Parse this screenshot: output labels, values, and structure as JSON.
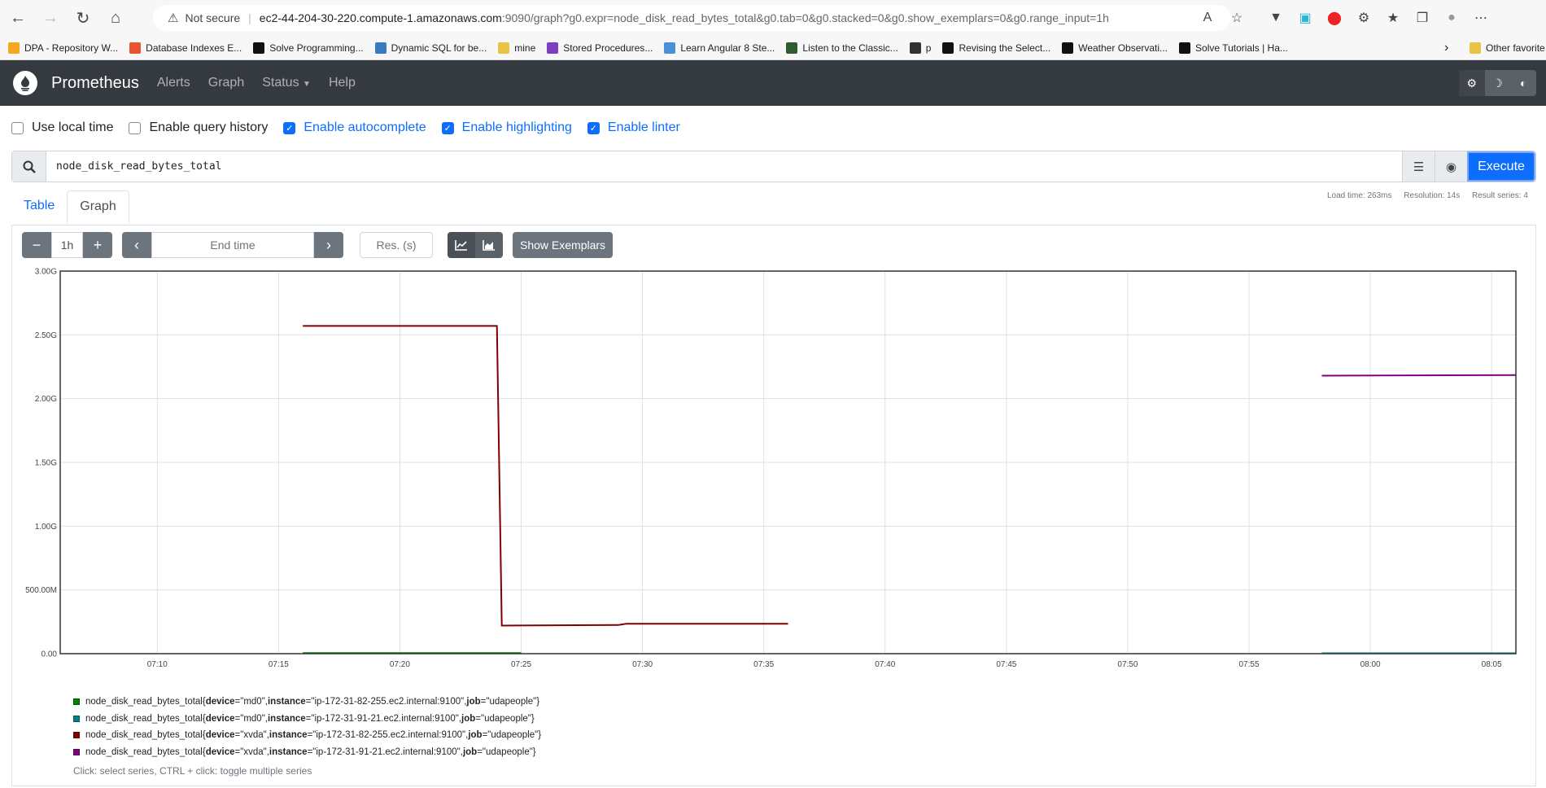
{
  "browser": {
    "not_secure": "Not secure",
    "url_host": "ec2-44-204-30-220.compute-1.amazonaws.com",
    "url_rest": ":9090/graph?g0.expr=node_disk_read_bytes_total&g0.tab=0&g0.stacked=0&g0.show_exemplars=0&g0.range_input=1h",
    "bookmarks": [
      {
        "label": "DPA - Repository W...",
        "icon": "dpa-icon",
        "color": "#f5a623"
      },
      {
        "label": "Database Indexes E...",
        "icon": "db-icon",
        "color": "#e8542e"
      },
      {
        "label": "Solve Programming...",
        "icon": "hackerrank-icon",
        "color": "#111111"
      },
      {
        "label": "Dynamic SQL for be...",
        "icon": "sql-icon",
        "color": "#3a7bbf"
      },
      {
        "label": "mine",
        "icon": "folder-icon",
        "color": "#e8c34a"
      },
      {
        "label": "Stored Procedures...",
        "icon": "sp-icon",
        "color": "#7b3fbf"
      },
      {
        "label": "Learn Angular 8 Ste...",
        "icon": "angular-icon",
        "color": "#4a90d9"
      },
      {
        "label": "Listen to the Classic...",
        "icon": "music-icon",
        "color": "#2f5d2f"
      },
      {
        "label": "p",
        "icon": "doc-icon",
        "color": "#333333"
      },
      {
        "label": "Revising the Select...",
        "icon": "hackerrank-icon",
        "color": "#111111"
      },
      {
        "label": "Weather Observati...",
        "icon": "hackerrank-icon",
        "color": "#111111"
      },
      {
        "label": "Solve Tutorials | Ha...",
        "icon": "hackerrank-icon",
        "color": "#111111"
      }
    ],
    "other_favorites": "Other favorite"
  },
  "nav": {
    "brand": "Prometheus",
    "links": [
      "Alerts",
      "Graph",
      "Status",
      "Help"
    ]
  },
  "options": [
    {
      "label": "Use local time",
      "checked": false
    },
    {
      "label": "Enable query history",
      "checked": false
    },
    {
      "label": "Enable autocomplete",
      "checked": true
    },
    {
      "label": "Enable highlighting",
      "checked": true
    },
    {
      "label": "Enable linter",
      "checked": true
    }
  ],
  "query": {
    "expression": "node_disk_read_bytes_total",
    "execute_label": "Execute"
  },
  "stats": {
    "load_time": "Load time: 263ms",
    "resolution": "Resolution: 14s",
    "result_series": "Result series: 4"
  },
  "tabs": [
    "Table",
    "Graph"
  ],
  "graph_controls": {
    "minus": "−",
    "range": "1h",
    "plus": "+",
    "end_time_placeholder": "End time",
    "res_placeholder": "Res. (s)",
    "show_exemplars": "Show Exemplars"
  },
  "chart_data": {
    "type": "line",
    "ylim": [
      0,
      3000000000
    ],
    "y_ticks": [
      {
        "value": 0,
        "label": "0.00"
      },
      {
        "value": 500000000,
        "label": "500.00M"
      },
      {
        "value": 1000000000,
        "label": "1.00G"
      },
      {
        "value": 1500000000,
        "label": "1.50G"
      },
      {
        "value": 2000000000,
        "label": "2.00G"
      },
      {
        "value": 2500000000,
        "label": "2.50G"
      },
      {
        "value": 3000000000,
        "label": "3.00G"
      }
    ],
    "xlim": [
      "07:06",
      "08:06"
    ],
    "x_ticks": [
      "07:10",
      "07:15",
      "07:20",
      "07:25",
      "07:30",
      "07:35",
      "07:40",
      "07:45",
      "07:50",
      "07:55",
      "08:00",
      "08:05"
    ],
    "grid": true,
    "series": [
      {
        "name": "md0 / ip-172-31-82-255",
        "color": "#008000",
        "points": [
          [
            "07:16",
            5000000
          ],
          [
            "07:25",
            5000000
          ]
        ]
      },
      {
        "name": "md0 / ip-172-31-91-21",
        "color": "#008080",
        "points": [
          [
            "07:58",
            3000000
          ],
          [
            "08:06",
            3000000
          ]
        ]
      },
      {
        "name": "xvda / ip-172-31-82-255",
        "color": "#800000",
        "points": [
          [
            "07:16",
            2570000000
          ],
          [
            "07:24",
            2570000000
          ],
          [
            "07:24:12",
            220000000
          ],
          [
            "07:29",
            225000000
          ],
          [
            "07:29:20",
            235000000
          ],
          [
            "07:36",
            235000000
          ]
        ]
      },
      {
        "name": "xvda / ip-172-31-91-21",
        "color": "#800080",
        "points": [
          [
            "07:58",
            2180000000
          ],
          [
            "08:06",
            2185000000
          ]
        ]
      }
    ]
  },
  "legend": {
    "items": [
      {
        "metric": "node_disk_read_bytes_total",
        "device": "\"md0\"",
        "instance": "\"ip-172-31-82-255.ec2.internal:9100\"",
        "job": "\"udapeople\"",
        "color": "#008000"
      },
      {
        "metric": "node_disk_read_bytes_total",
        "device": "\"md0\"",
        "instance": "\"ip-172-31-91-21.ec2.internal:9100\"",
        "job": "\"udapeople\"",
        "color": "#008080"
      },
      {
        "metric": "node_disk_read_bytes_total",
        "device": "\"xvda\"",
        "instance": "\"ip-172-31-82-255.ec2.internal:9100\"",
        "job": "\"udapeople\"",
        "color": "#800000"
      },
      {
        "metric": "node_disk_read_bytes_total",
        "device": "\"xvda\"",
        "instance": "\"ip-172-31-91-21.ec2.internal:9100\"",
        "job": "\"udapeople\"",
        "color": "#800080"
      }
    ],
    "hint": "Click: select series, CTRL + click: toggle multiple series"
  }
}
